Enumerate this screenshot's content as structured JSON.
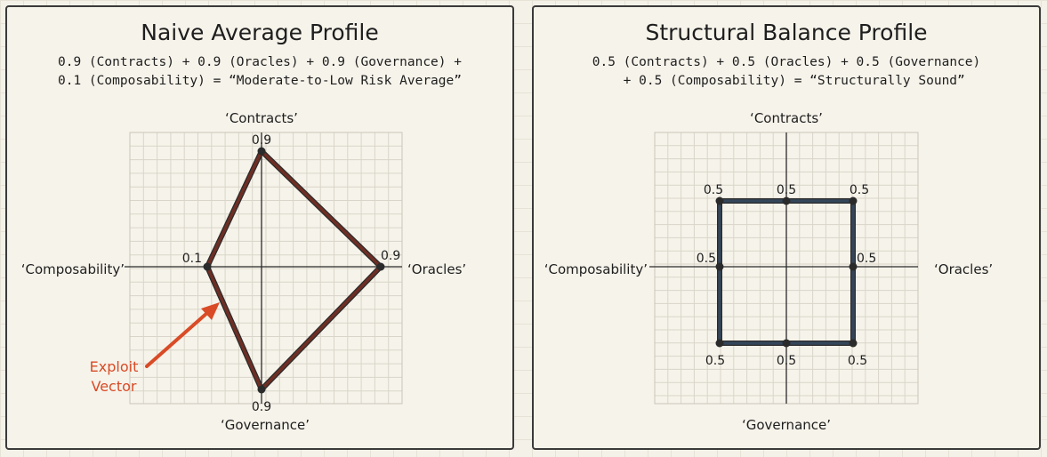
{
  "colors": {
    "background": "#f4f1e8",
    "panel_border": "#3a3a3a",
    "naive_shape": "#6e2e24",
    "structural_shape": "#34465a",
    "exploit_arrow": "#d94b26",
    "grid": "#d9d5ca"
  },
  "naive": {
    "title": "Naive Average Profile",
    "formula_line1": "0.9 (Contracts) + 0.9 (Oracles) + 0.9 (Governance) +",
    "formula_line2": "0.1 (Composability) = “Moderate-to-Low Risk Average”",
    "axes": {
      "top": "‘Contracts’",
      "right": "‘Oracles’",
      "bottom": "‘Governance’",
      "left": "‘Composability’"
    },
    "values": {
      "contracts": "0.9",
      "oracles": "0.9",
      "governance": "0.9",
      "composability": "0.1"
    },
    "exploit_line1": "Exploit",
    "exploit_line2": "Vector"
  },
  "structural": {
    "title": "Structural Balance Profile",
    "formula_line1": "0.5 (Contracts) + 0.5 (Oracles) + 0.5 (Governance)",
    "formula_line2": "  + 0.5 (Composability) = “Structurally Sound”",
    "axes": {
      "top": "‘Contracts’",
      "right": "‘Oracles’",
      "bottom": "‘Governance’",
      "left": "‘Composability’"
    },
    "values": {
      "top_left": "0.5",
      "top_center": "0.5",
      "top_right": "0.5",
      "mid_left": "0.5",
      "mid_right": "0.5",
      "bottom_left": "0.5",
      "bottom_center": "0.5",
      "bottom_right": "0.5"
    }
  }
}
